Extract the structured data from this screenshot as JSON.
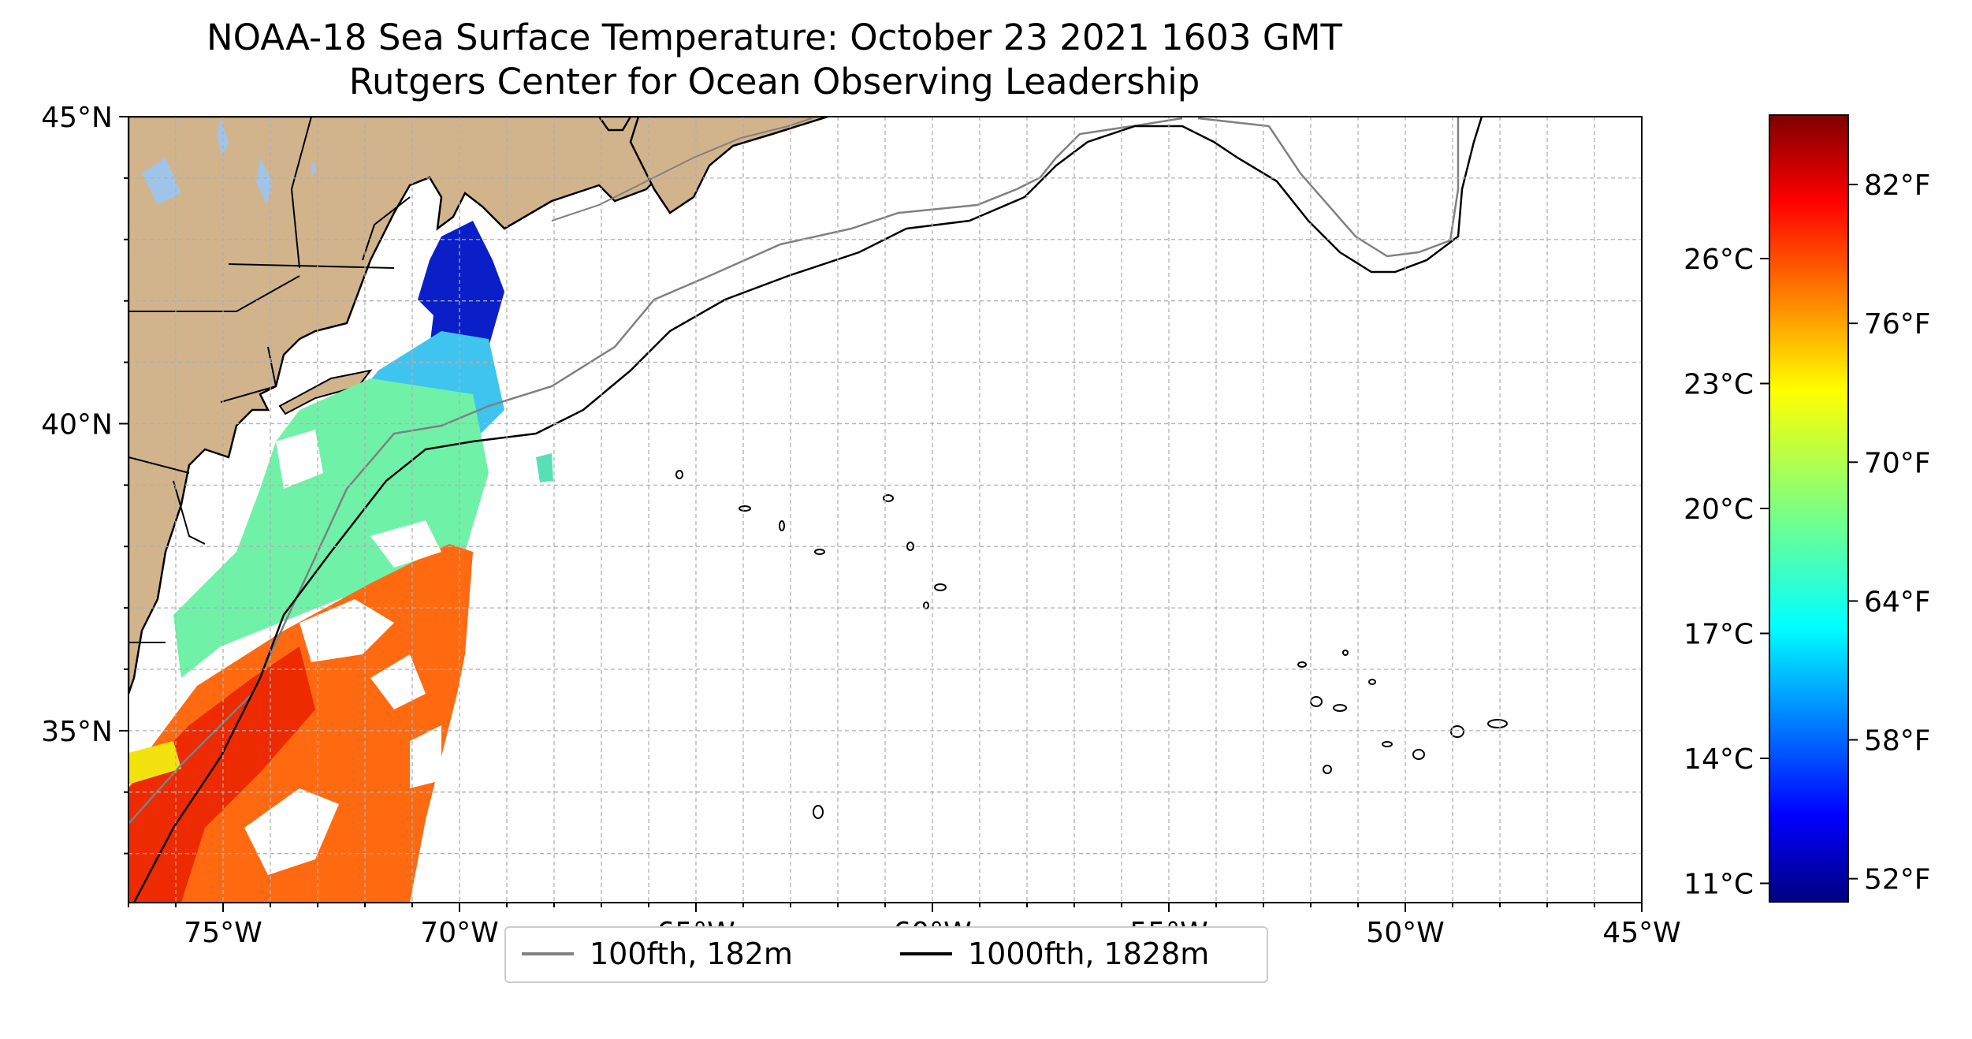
{
  "title": "NOAA-18 Sea Surface Temperature: October 23 2021 1603 GMT",
  "subtitle": "Rutgers Center for Ocean Observing Leadership",
  "map": {
    "lon_range": [
      -77,
      -45
    ],
    "lat_range": [
      32.2,
      45
    ],
    "lat_ticks": [
      {
        "value": 45,
        "label": "45°N"
      },
      {
        "value": 40,
        "label": "40°N"
      },
      {
        "value": 35,
        "label": "35°N"
      }
    ],
    "lon_ticks": [
      {
        "value": -75,
        "label": "75°W"
      },
      {
        "value": -70,
        "label": "70°W"
      },
      {
        "value": -65,
        "label": "65°W"
      },
      {
        "value": -60,
        "label": "60°W"
      },
      {
        "value": -55,
        "label": "55°W"
      },
      {
        "value": -50,
        "label": "50°W"
      },
      {
        "value": -45,
        "label": "45°W"
      }
    ],
    "gridlines": true,
    "land_color": "#d2b48c",
    "lake_color": "#9fc4e8"
  },
  "colorbar": {
    "colormap": "jet",
    "range_f": [
      51,
      85
    ],
    "fahrenheit_ticks": [
      {
        "value": 52,
        "label": "52°F"
      },
      {
        "value": 58,
        "label": "58°F"
      },
      {
        "value": 64,
        "label": "64°F"
      },
      {
        "value": 70,
        "label": "70°F"
      },
      {
        "value": 76,
        "label": "76°F"
      },
      {
        "value": 82,
        "label": "82°F"
      }
    ],
    "celsius_ticks": [
      {
        "value": 11,
        "label": "11°C"
      },
      {
        "value": 14,
        "label": "14°C"
      },
      {
        "value": 17,
        "label": "17°C"
      },
      {
        "value": 20,
        "label": "20°C"
      },
      {
        "value": 23,
        "label": "23°C"
      },
      {
        "value": 26,
        "label": "26°C"
      }
    ]
  },
  "legend": {
    "items": [
      {
        "label": "100fth, 182m",
        "color": "#808080"
      },
      {
        "label": "1000fth, 1828m",
        "color": "#000000"
      }
    ]
  }
}
